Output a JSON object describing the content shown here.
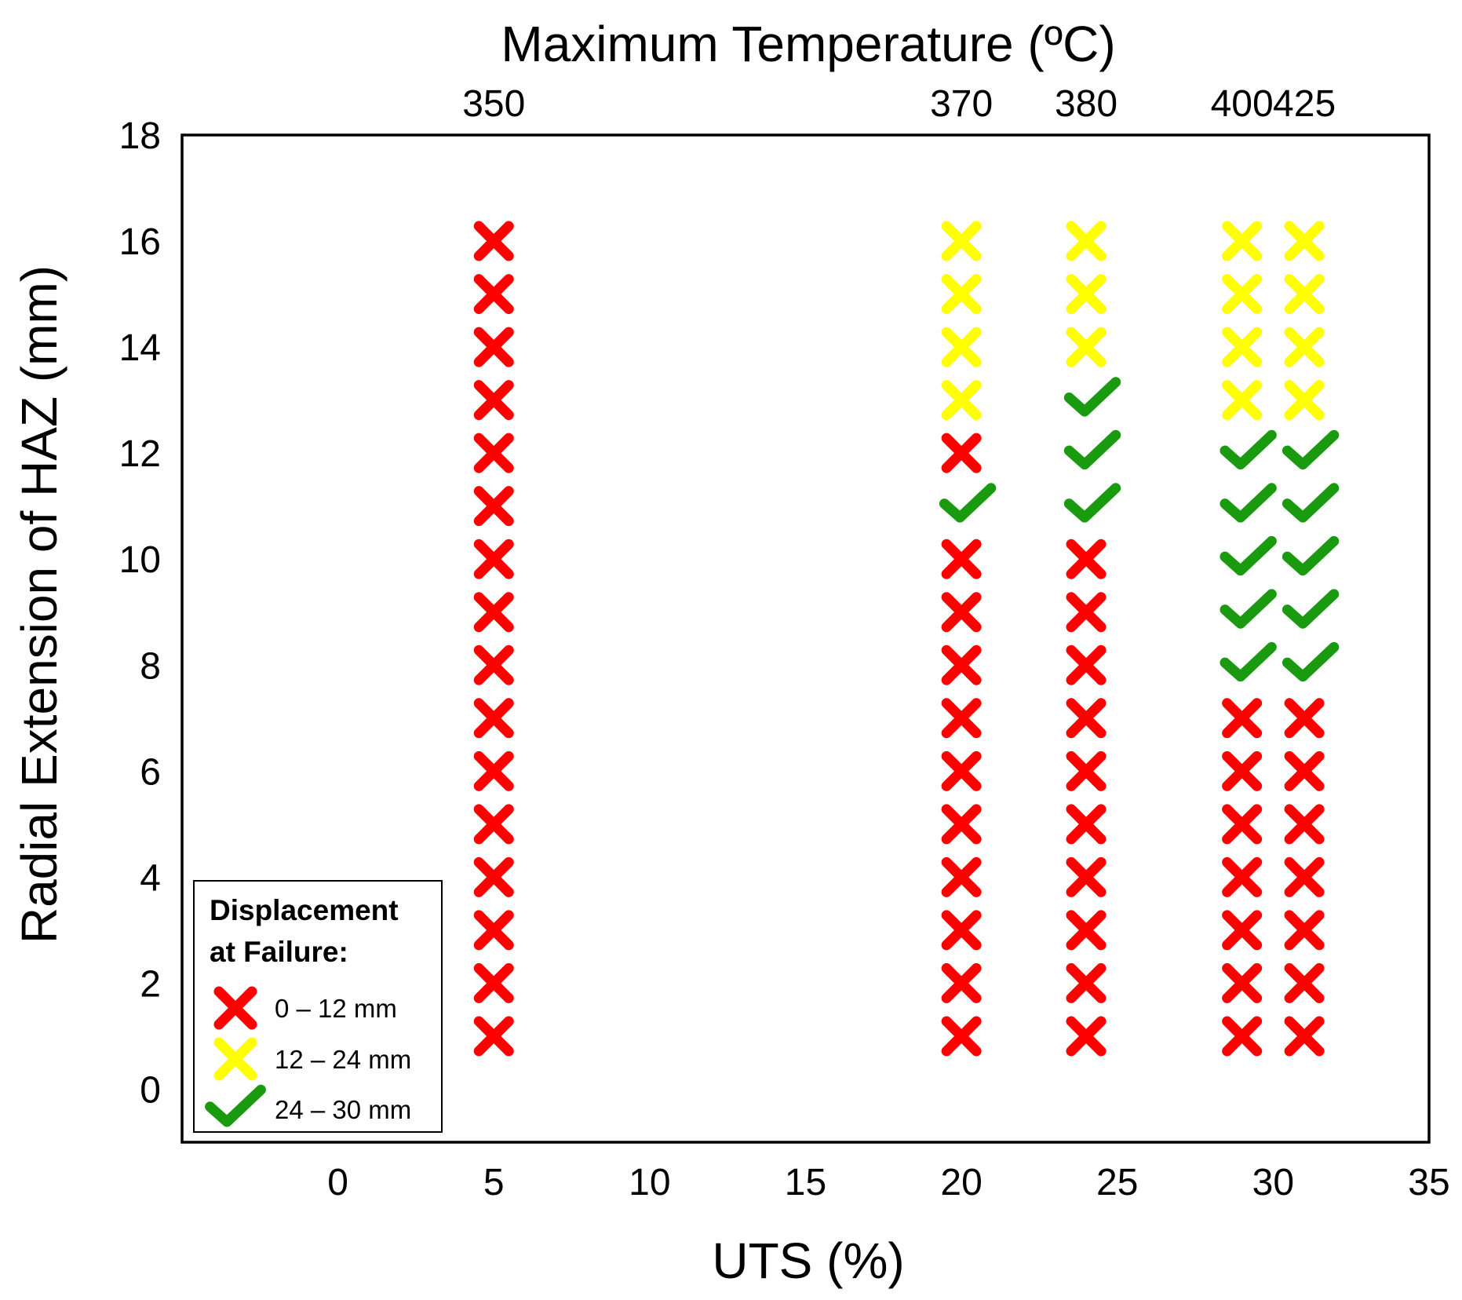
{
  "chart_data": {
    "type": "scatter",
    "title": "Maximum Temperature (ºC)",
    "xlabel": "UTS (%)",
    "ylabel": "Radial Extension of HAZ (mm)",
    "xlim": [
      -5,
      35
    ],
    "ylim": [
      -1,
      18
    ],
    "x_ticks": [
      "0",
      "5",
      "10",
      "15",
      "20",
      "25",
      "30",
      "35"
    ],
    "y_ticks": [
      "0",
      "2",
      "4",
      "6",
      "8",
      "10",
      "12",
      "14",
      "16",
      "18"
    ],
    "top_axis": {
      "ticks": [
        {
          "x": 5,
          "label": "350"
        },
        {
          "x": 20,
          "label": "370"
        },
        {
          "x": 24,
          "label": "380"
        },
        {
          "x": 29,
          "label": "400"
        },
        {
          "x": 31,
          "label": "425"
        }
      ]
    },
    "legend": {
      "title_line1": "Displacement",
      "title_line2": "at Failure:",
      "position": "bottom-left",
      "entries": [
        {
          "label": "0 – 12 mm",
          "marker": "cross",
          "color": "#ff0000"
        },
        {
          "label": "12 –  24 mm",
          "marker": "cross",
          "color": "#ffff00"
        },
        {
          "label": "24 –  30 mm",
          "marker": "check",
          "color": "#1a9a0f"
        }
      ]
    },
    "series": [
      {
        "name": "350 ºC",
        "x": 5,
        "points": [
          {
            "y": 1,
            "c": "red"
          },
          {
            "y": 2,
            "c": "red"
          },
          {
            "y": 3,
            "c": "red"
          },
          {
            "y": 4,
            "c": "red"
          },
          {
            "y": 5,
            "c": "red"
          },
          {
            "y": 6,
            "c": "red"
          },
          {
            "y": 7,
            "c": "red"
          },
          {
            "y": 8,
            "c": "red"
          },
          {
            "y": 9,
            "c": "red"
          },
          {
            "y": 10,
            "c": "red"
          },
          {
            "y": 11,
            "c": "red"
          },
          {
            "y": 12,
            "c": "red"
          },
          {
            "y": 13,
            "c": "red"
          },
          {
            "y": 14,
            "c": "red"
          },
          {
            "y": 15,
            "c": "red"
          },
          {
            "y": 16,
            "c": "red"
          }
        ]
      },
      {
        "name": "370 ºC",
        "x": 20,
        "points": [
          {
            "y": 1,
            "c": "red"
          },
          {
            "y": 2,
            "c": "red"
          },
          {
            "y": 3,
            "c": "red"
          },
          {
            "y": 4,
            "c": "red"
          },
          {
            "y": 5,
            "c": "red"
          },
          {
            "y": 6,
            "c": "red"
          },
          {
            "y": 7,
            "c": "red"
          },
          {
            "y": 8,
            "c": "red"
          },
          {
            "y": 9,
            "c": "red"
          },
          {
            "y": 10,
            "c": "red"
          },
          {
            "y": 11,
            "c": "green"
          },
          {
            "y": 12,
            "c": "red"
          },
          {
            "y": 13,
            "c": "yellow"
          },
          {
            "y": 14,
            "c": "yellow"
          },
          {
            "y": 15,
            "c": "yellow"
          },
          {
            "y": 16,
            "c": "yellow"
          }
        ]
      },
      {
        "name": "380 ºC",
        "x": 24,
        "points": [
          {
            "y": 1,
            "c": "red"
          },
          {
            "y": 2,
            "c": "red"
          },
          {
            "y": 3,
            "c": "red"
          },
          {
            "y": 4,
            "c": "red"
          },
          {
            "y": 5,
            "c": "red"
          },
          {
            "y": 6,
            "c": "red"
          },
          {
            "y": 7,
            "c": "red"
          },
          {
            "y": 8,
            "c": "red"
          },
          {
            "y": 9,
            "c": "red"
          },
          {
            "y": 10,
            "c": "red"
          },
          {
            "y": 11,
            "c": "green"
          },
          {
            "y": 12,
            "c": "green"
          },
          {
            "y": 13,
            "c": "green"
          },
          {
            "y": 14,
            "c": "yellow"
          },
          {
            "y": 15,
            "c": "yellow"
          },
          {
            "y": 16,
            "c": "yellow"
          }
        ]
      },
      {
        "name": "400 ºC",
        "x": 29,
        "points": [
          {
            "y": 1,
            "c": "red"
          },
          {
            "y": 2,
            "c": "red"
          },
          {
            "y": 3,
            "c": "red"
          },
          {
            "y": 4,
            "c": "red"
          },
          {
            "y": 5,
            "c": "red"
          },
          {
            "y": 6,
            "c": "red"
          },
          {
            "y": 7,
            "c": "red"
          },
          {
            "y": 8,
            "c": "green"
          },
          {
            "y": 9,
            "c": "green"
          },
          {
            "y": 10,
            "c": "green"
          },
          {
            "y": 11,
            "c": "green"
          },
          {
            "y": 12,
            "c": "green"
          },
          {
            "y": 13,
            "c": "yellow"
          },
          {
            "y": 14,
            "c": "yellow"
          },
          {
            "y": 15,
            "c": "yellow"
          },
          {
            "y": 16,
            "c": "yellow"
          }
        ]
      },
      {
        "name": "425 ºC",
        "x": 31,
        "points": [
          {
            "y": 1,
            "c": "red"
          },
          {
            "y": 2,
            "c": "red"
          },
          {
            "y": 3,
            "c": "red"
          },
          {
            "y": 4,
            "c": "red"
          },
          {
            "y": 5,
            "c": "red"
          },
          {
            "y": 6,
            "c": "red"
          },
          {
            "y": 7,
            "c": "red"
          },
          {
            "y": 8,
            "c": "green"
          },
          {
            "y": 9,
            "c": "green"
          },
          {
            "y": 10,
            "c": "green"
          },
          {
            "y": 11,
            "c": "green"
          },
          {
            "y": 12,
            "c": "green"
          },
          {
            "y": 13,
            "c": "yellow"
          },
          {
            "y": 14,
            "c": "yellow"
          },
          {
            "y": 15,
            "c": "yellow"
          },
          {
            "y": 16,
            "c": "yellow"
          }
        ]
      }
    ],
    "colors": {
      "red": "#ff0000",
      "yellow": "#ffff00",
      "green": "#1a9a0f"
    }
  }
}
